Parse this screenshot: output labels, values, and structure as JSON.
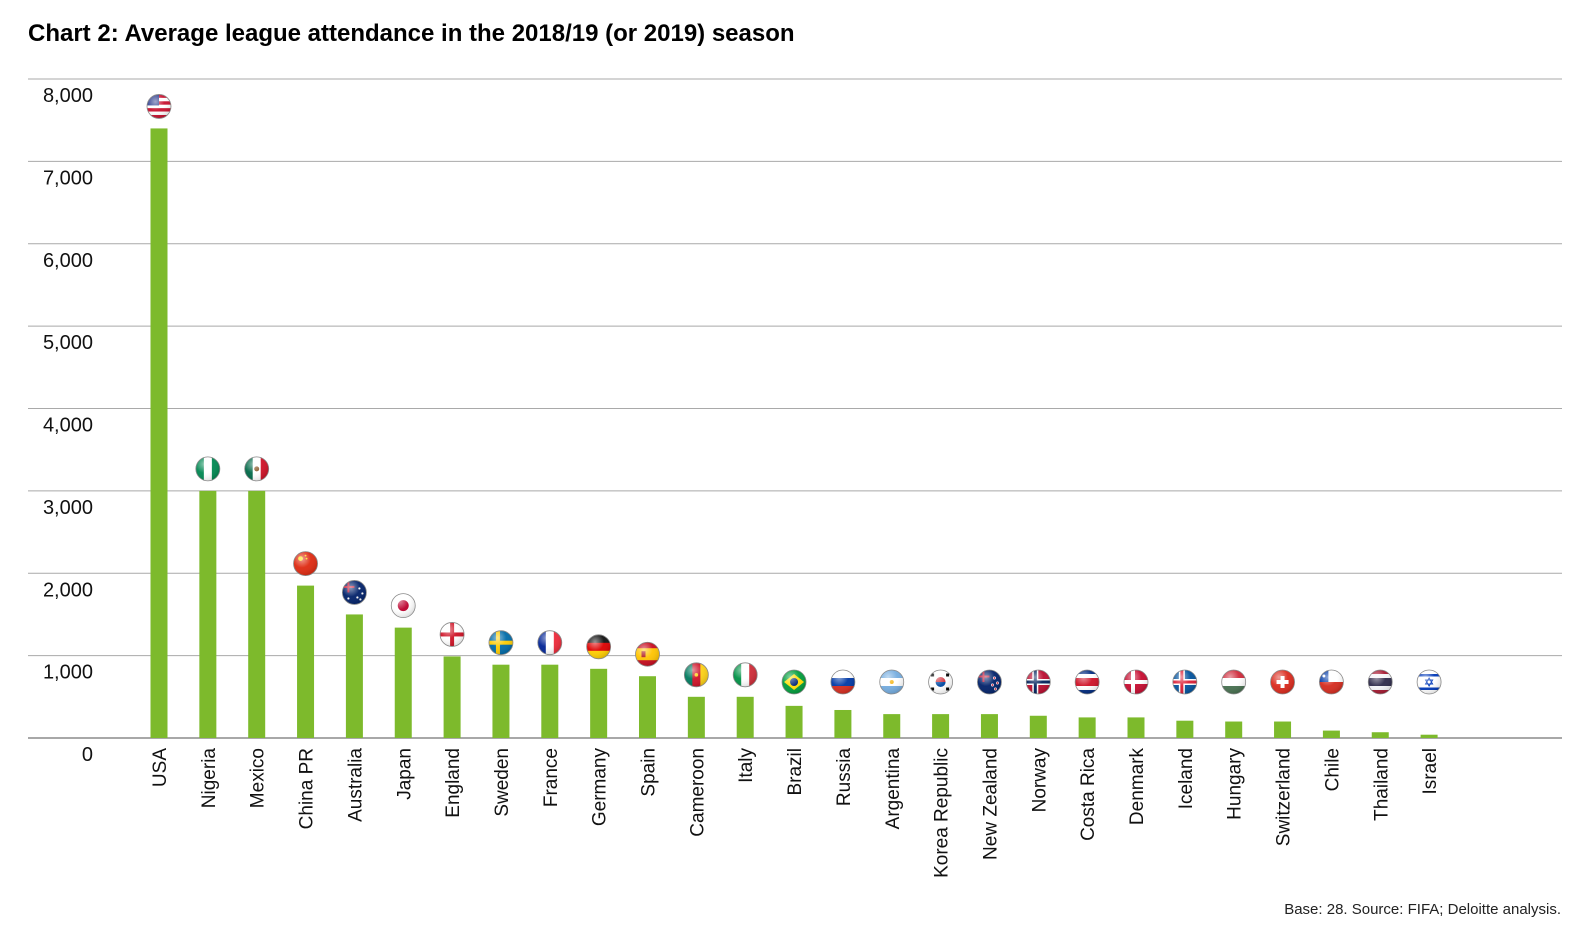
{
  "chart_data": {
    "type": "bar",
    "title": "Chart 2: Average league attendance in the 2018/19 (or 2019) season",
    "xlabel": "",
    "ylabel": "",
    "ylim": [
      0,
      8000
    ],
    "yticks": [
      "0",
      "1,000",
      "2,000",
      "3,000",
      "4,000",
      "5,000",
      "6,000",
      "7,000",
      "8,000"
    ],
    "grid": true,
    "bar_color": "#7dba2c",
    "categories": [
      "USA",
      "Nigeria",
      "Mexico",
      "China PR",
      "Australia",
      "Japan",
      "England",
      "Sweden",
      "France",
      "Germany",
      "Spain",
      "Cameroon",
      "Italy",
      "Brazil",
      "Russia",
      "Argentina",
      "Korea Republic",
      "New Zealand",
      "Norway",
      "Costa Rica",
      "Denmark",
      "Iceland",
      "Hungary",
      "Switzerland",
      "Chile",
      "Thailand",
      "Israel"
    ],
    "values": [
      7400,
      3000,
      3000,
      1850,
      1500,
      1340,
      990,
      890,
      890,
      840,
      750,
      500,
      500,
      390,
      340,
      290,
      290,
      290,
      270,
      250,
      250,
      210,
      200,
      200,
      90,
      70,
      40
    ],
    "flags": [
      "usa-flag-icon",
      "nigeria-flag-icon",
      "mexico-flag-icon",
      "china-flag-icon",
      "australia-flag-icon",
      "japan-flag-icon",
      "england-flag-icon",
      "sweden-flag-icon",
      "france-flag-icon",
      "germany-flag-icon",
      "spain-flag-icon",
      "cameroon-flag-icon",
      "italy-flag-icon",
      "brazil-flag-icon",
      "russia-flag-icon",
      "argentina-flag-icon",
      "korea-flag-icon",
      "new-zealand-flag-icon",
      "norway-flag-icon",
      "costa-rica-flag-icon",
      "denmark-flag-icon",
      "iceland-flag-icon",
      "hungary-flag-icon",
      "switzerland-flag-icon",
      "chile-flag-icon",
      "thailand-flag-icon",
      "israel-flag-icon"
    ],
    "source": "Base: 28. Source: FIFA; Deloitte analysis."
  }
}
